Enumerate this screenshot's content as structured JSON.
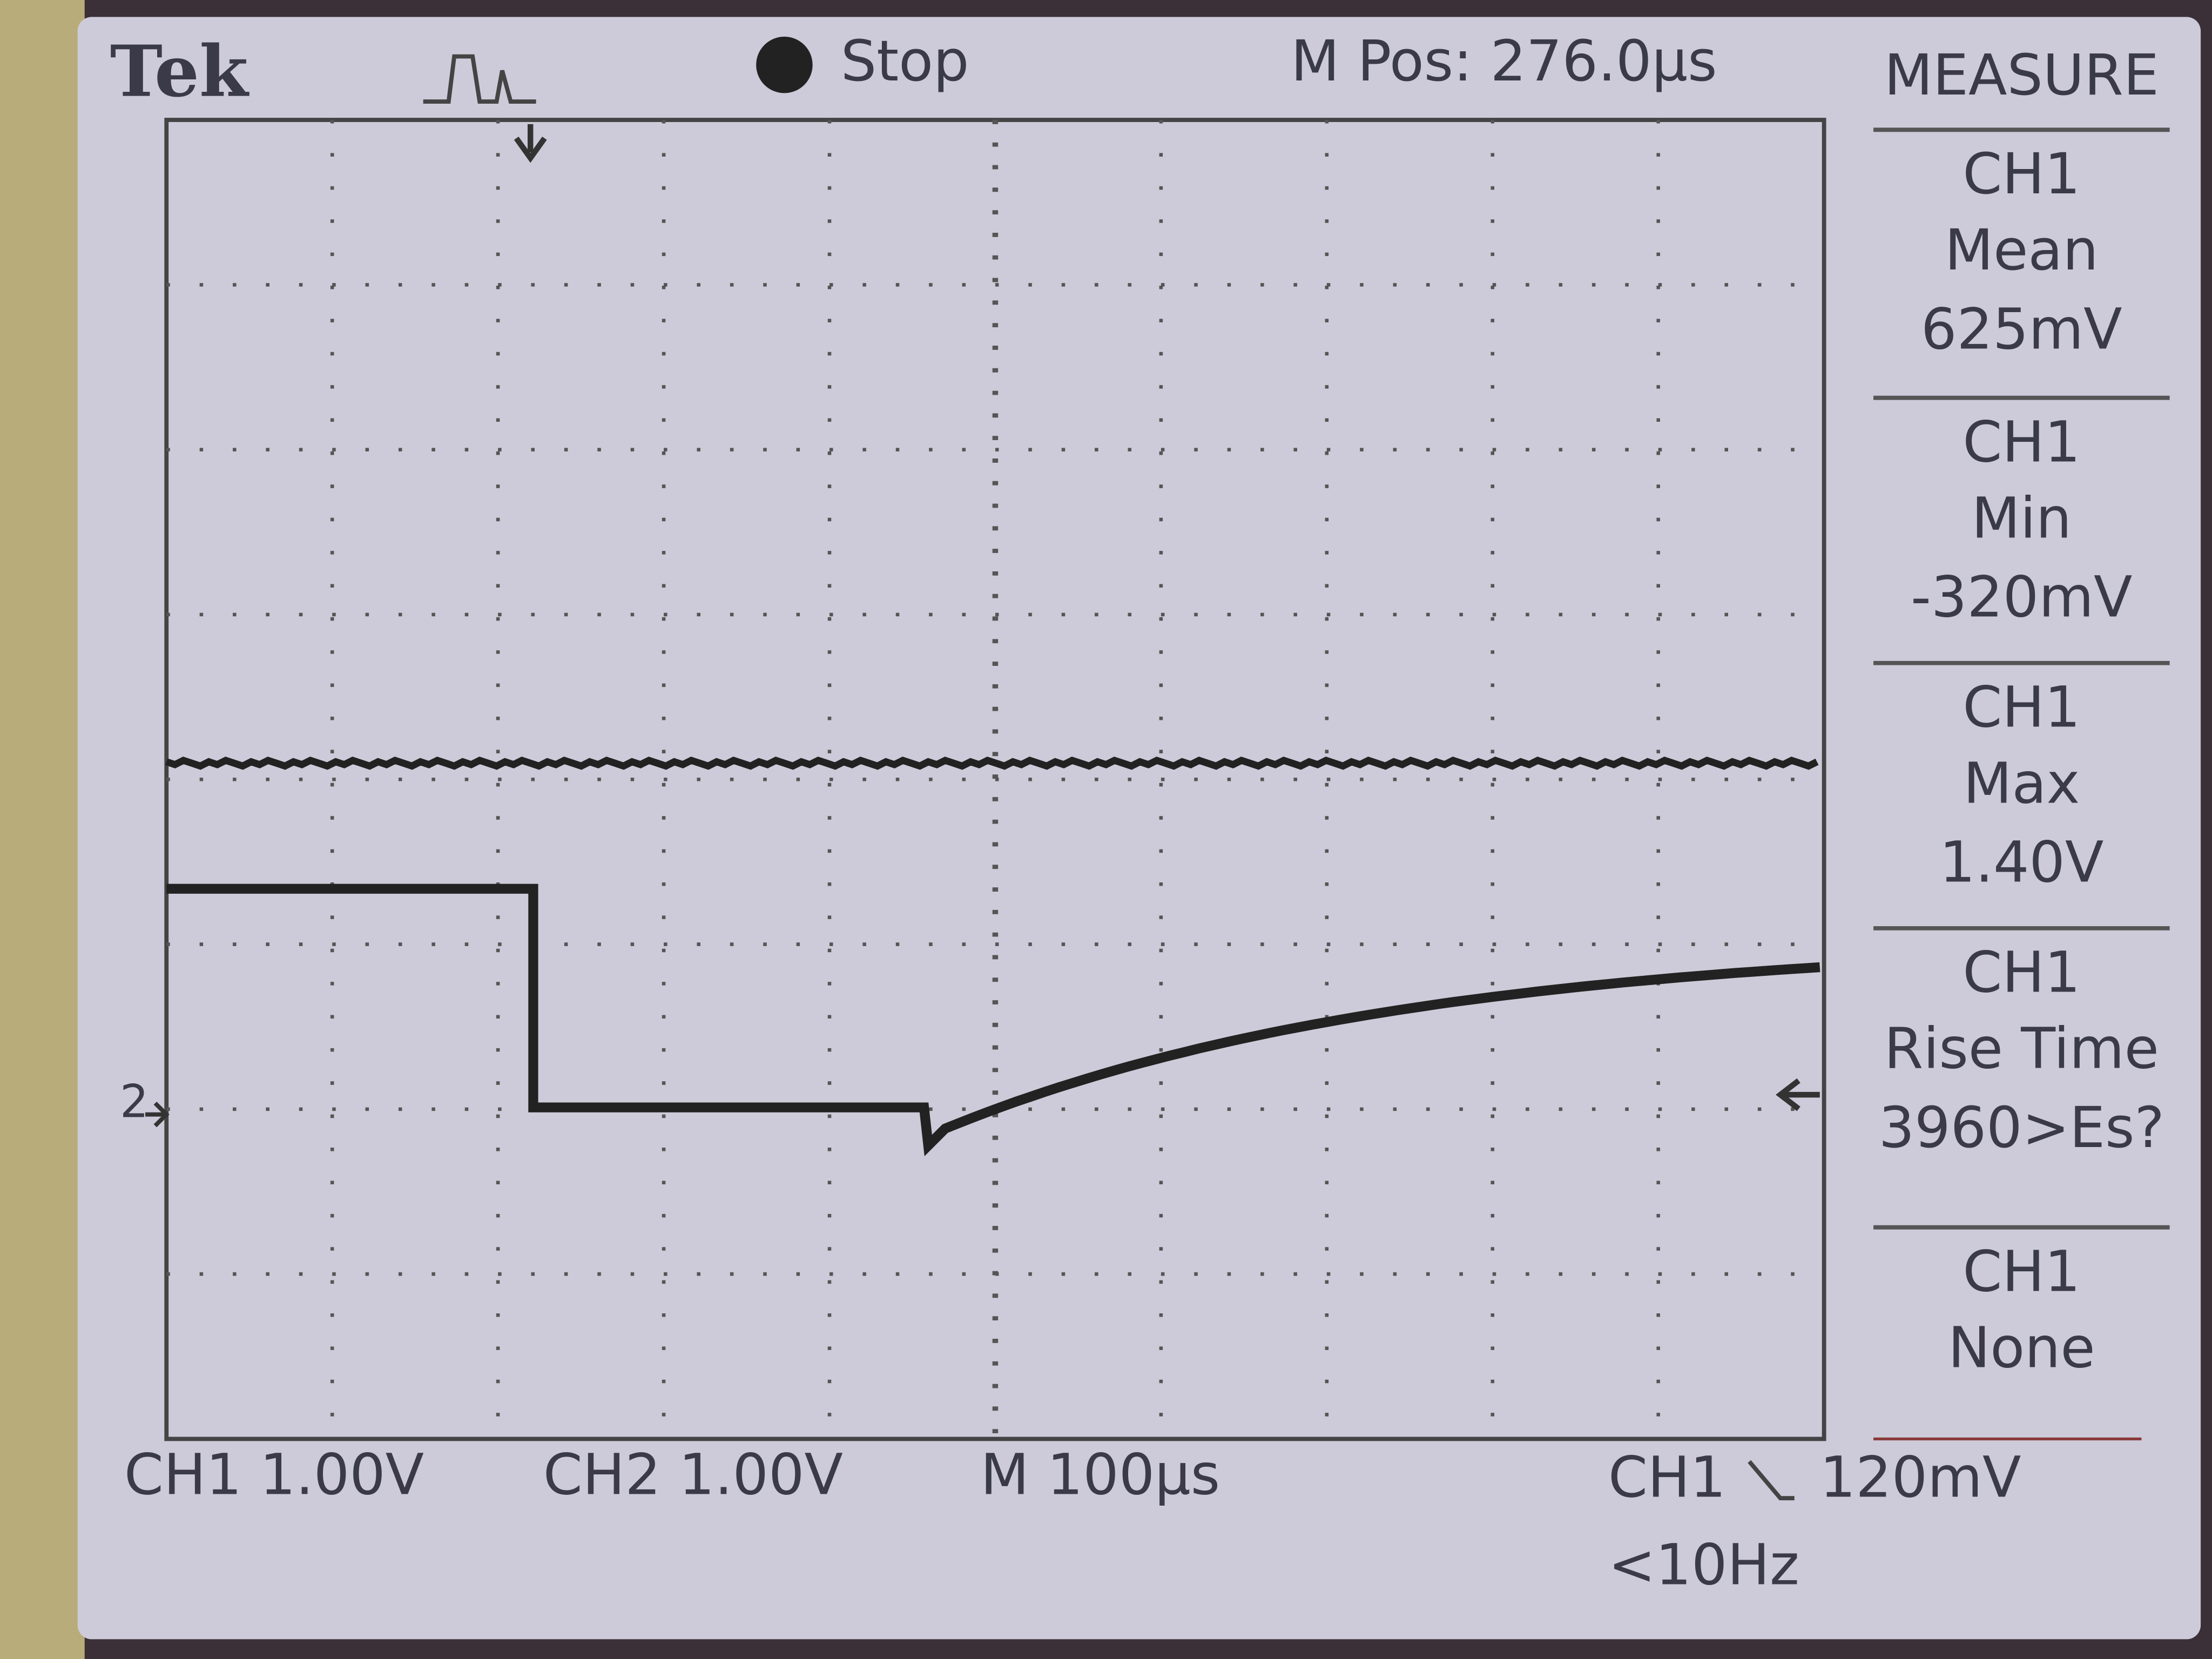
{
  "header": {
    "brand": "Tek",
    "status": "Stop",
    "position": "M Pos: 276.0µs"
  },
  "measure": {
    "title": "MEASURE",
    "items": [
      {
        "channel": "CH1",
        "label": "Mean",
        "value": "625mV"
      },
      {
        "channel": "CH1",
        "label": "Min",
        "value": "-320mV"
      },
      {
        "channel": "CH1",
        "label": "Max",
        "value": "1.40V"
      },
      {
        "channel": "CH1",
        "label": "Rise Time",
        "value": "3960>Es?"
      },
      {
        "channel": "CH1",
        "label": "None"
      }
    ]
  },
  "footer": {
    "ch1_scale": "CH1 1.00V",
    "ch2_scale": "CH2 1.00V",
    "timebase": "M 100µs",
    "trigger_source": "CH1",
    "trigger_level": "120mV",
    "frequency": "<10Hz"
  },
  "markers": {
    "ch2": "2"
  }
}
